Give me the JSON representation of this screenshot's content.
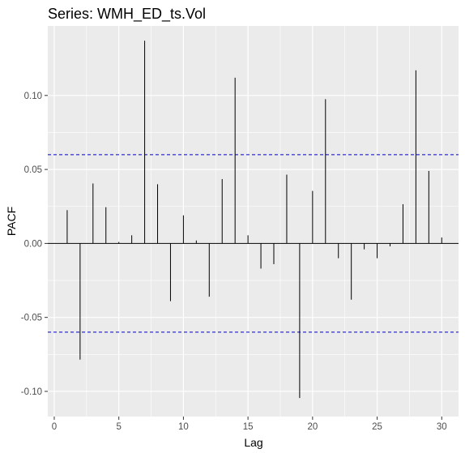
{
  "chart_data": {
    "type": "bar",
    "title": "Series: WMH_ED_ts.Vol",
    "xlabel": "Lag",
    "ylabel": "PACF",
    "xlim": [
      -0.5,
      31.3
    ],
    "ylim": [
      -0.117,
      0.147
    ],
    "x_ticks": [
      0,
      5,
      10,
      15,
      20,
      25,
      30
    ],
    "y_ticks": [
      -0.1,
      -0.05,
      0.0,
      0.05,
      0.1
    ],
    "x_tick_labels": [
      "0",
      "5",
      "10",
      "15",
      "20",
      "25",
      "30"
    ],
    "y_tick_labels": [
      "-0.10",
      "-0.05",
      "0.00",
      "0.05",
      "0.10"
    ],
    "confidence_bounds": [
      0.06,
      -0.06
    ],
    "lags": [
      1,
      2,
      3,
      4,
      5,
      6,
      7,
      8,
      9,
      10,
      11,
      12,
      13,
      14,
      15,
      16,
      17,
      18,
      19,
      20,
      21,
      22,
      23,
      24,
      25,
      26,
      27,
      28,
      29,
      30
    ],
    "values": [
      0.0225,
      -0.0785,
      0.0405,
      0.0245,
      0.001,
      0.0055,
      0.137,
      0.04,
      -0.039,
      0.019,
      0.002,
      -0.036,
      0.0435,
      0.112,
      0.0055,
      -0.017,
      -0.014,
      0.0465,
      -0.1045,
      0.0355,
      0.0975,
      -0.01,
      -0.038,
      -0.004,
      -0.01,
      -0.002,
      0.0265,
      0.117,
      0.049,
      0.004
    ],
    "grid": true,
    "colors": {
      "panel": "#ebebeb",
      "grid": "#ffffff",
      "bar": "#000000",
      "bound": "#0000cc"
    }
  }
}
